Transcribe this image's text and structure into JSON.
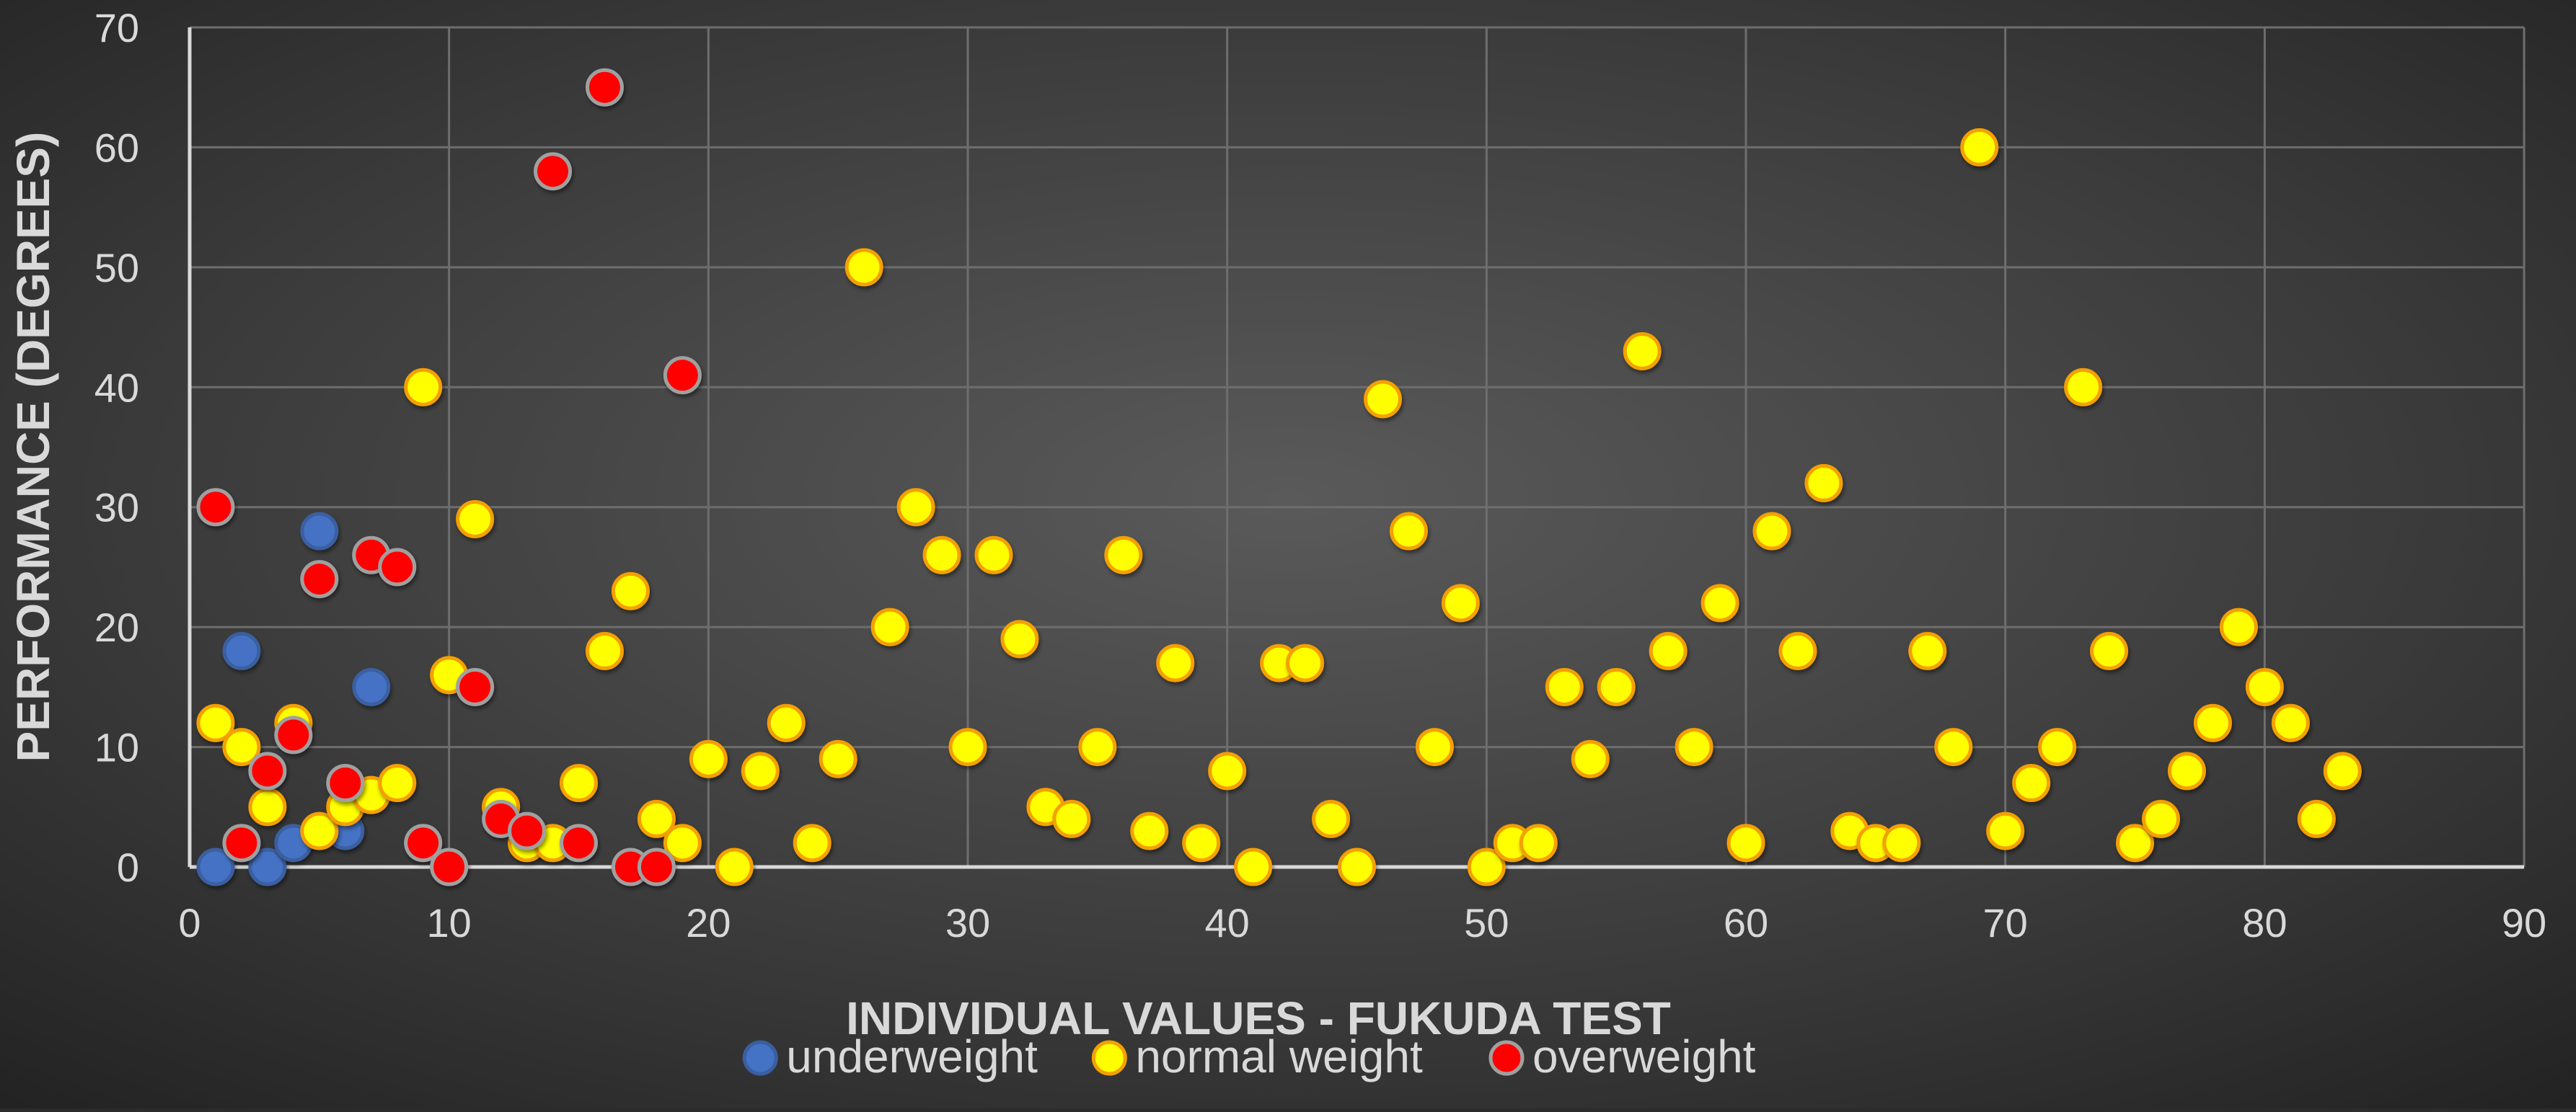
{
  "chart_data": {
    "type": "scatter",
    "title": "",
    "xlabel": "INDIVIDUAL VALUES - FUKUDA TEST",
    "ylabel": "PERFORMANCE (DEGREES)",
    "xlim": [
      0,
      90
    ],
    "ylim": [
      0,
      70
    ],
    "x_ticks": [
      0,
      10,
      20,
      30,
      40,
      50,
      60,
      70,
      80,
      90
    ],
    "y_ticks": [
      0,
      10,
      20,
      30,
      40,
      50,
      60,
      70
    ],
    "grid": true,
    "legend_position": "bottom",
    "series": [
      {
        "name": "underweight",
        "color": "#4472c4",
        "points": [
          {
            "x": 1,
            "y": 0
          },
          {
            "x": 2,
            "y": 18
          },
          {
            "x": 3,
            "y": 0
          },
          {
            "x": 4,
            "y": 2
          },
          {
            "x": 5,
            "y": 28
          },
          {
            "x": 6,
            "y": 3
          },
          {
            "x": 7,
            "y": 15
          }
        ]
      },
      {
        "name": "normal weight",
        "color": "#ffff00",
        "points": [
          {
            "x": 1,
            "y": 12
          },
          {
            "x": 2,
            "y": 10
          },
          {
            "x": 3,
            "y": 5
          },
          {
            "x": 4,
            "y": 12
          },
          {
            "x": 5,
            "y": 3
          },
          {
            "x": 6,
            "y": 5
          },
          {
            "x": 7,
            "y": 6
          },
          {
            "x": 8,
            "y": 7
          },
          {
            "x": 9,
            "y": 40
          },
          {
            "x": 10,
            "y": 16
          },
          {
            "x": 11,
            "y": 29
          },
          {
            "x": 12,
            "y": 5
          },
          {
            "x": 13,
            "y": 2
          },
          {
            "x": 14,
            "y": 2
          },
          {
            "x": 15,
            "y": 7
          },
          {
            "x": 16,
            "y": 18
          },
          {
            "x": 17,
            "y": 23
          },
          {
            "x": 18,
            "y": 4
          },
          {
            "x": 19,
            "y": 2
          },
          {
            "x": 20,
            "y": 9
          },
          {
            "x": 21,
            "y": 0
          },
          {
            "x": 22,
            "y": 8
          },
          {
            "x": 23,
            "y": 12
          },
          {
            "x": 24,
            "y": 2
          },
          {
            "x": 25,
            "y": 9
          },
          {
            "x": 26,
            "y": 50
          },
          {
            "x": 27,
            "y": 20
          },
          {
            "x": 28,
            "y": 30
          },
          {
            "x": 29,
            "y": 26
          },
          {
            "x": 30,
            "y": 10
          },
          {
            "x": 31,
            "y": 26
          },
          {
            "x": 32,
            "y": 19
          },
          {
            "x": 33,
            "y": 5
          },
          {
            "x": 34,
            "y": 4
          },
          {
            "x": 35,
            "y": 10
          },
          {
            "x": 36,
            "y": 26
          },
          {
            "x": 37,
            "y": 3
          },
          {
            "x": 38,
            "y": 17
          },
          {
            "x": 39,
            "y": 2
          },
          {
            "x": 40,
            "y": 8
          },
          {
            "x": 41,
            "y": 0
          },
          {
            "x": 42,
            "y": 17
          },
          {
            "x": 43,
            "y": 17
          },
          {
            "x": 44,
            "y": 4
          },
          {
            "x": 45,
            "y": 0
          },
          {
            "x": 46,
            "y": 39
          },
          {
            "x": 47,
            "y": 28
          },
          {
            "x": 48,
            "y": 10
          },
          {
            "x": 49,
            "y": 22
          },
          {
            "x": 50,
            "y": 0
          },
          {
            "x": 51,
            "y": 2
          },
          {
            "x": 52,
            "y": 2
          },
          {
            "x": 53,
            "y": 15
          },
          {
            "x": 54,
            "y": 9
          },
          {
            "x": 55,
            "y": 15
          },
          {
            "x": 56,
            "y": 43
          },
          {
            "x": 57,
            "y": 18
          },
          {
            "x": 58,
            "y": 10
          },
          {
            "x": 59,
            "y": 22
          },
          {
            "x": 60,
            "y": 2
          },
          {
            "x": 61,
            "y": 28
          },
          {
            "x": 62,
            "y": 18
          },
          {
            "x": 63,
            "y": 32
          },
          {
            "x": 64,
            "y": 3
          },
          {
            "x": 65,
            "y": 2
          },
          {
            "x": 66,
            "y": 2
          },
          {
            "x": 67,
            "y": 18
          },
          {
            "x": 68,
            "y": 10
          },
          {
            "x": 69,
            "y": 60
          },
          {
            "x": 70,
            "y": 3
          },
          {
            "x": 71,
            "y": 7
          },
          {
            "x": 72,
            "y": 10
          },
          {
            "x": 73,
            "y": 40
          },
          {
            "x": 74,
            "y": 18
          },
          {
            "x": 75,
            "y": 2
          },
          {
            "x": 76,
            "y": 4
          },
          {
            "x": 77,
            "y": 8
          },
          {
            "x": 78,
            "y": 12
          },
          {
            "x": 79,
            "y": 20
          },
          {
            "x": 80,
            "y": 15
          },
          {
            "x": 81,
            "y": 12
          },
          {
            "x": 82,
            "y": 4
          },
          {
            "x": 83,
            "y": 8
          }
        ]
      },
      {
        "name": "overweight",
        "color": "#ff0000",
        "points": [
          {
            "x": 1,
            "y": 30
          },
          {
            "x": 2,
            "y": 2
          },
          {
            "x": 3,
            "y": 8
          },
          {
            "x": 4,
            "y": 11
          },
          {
            "x": 5,
            "y": 24
          },
          {
            "x": 6,
            "y": 7
          },
          {
            "x": 7,
            "y": 26
          },
          {
            "x": 8,
            "y": 25
          },
          {
            "x": 9,
            "y": 2
          },
          {
            "x": 10,
            "y": 0
          },
          {
            "x": 11,
            "y": 15
          },
          {
            "x": 12,
            "y": 4
          },
          {
            "x": 13,
            "y": 3
          },
          {
            "x": 14,
            "y": 58
          },
          {
            "x": 15,
            "y": 2
          },
          {
            "x": 16,
            "y": 65
          },
          {
            "x": 17,
            "y": 0
          },
          {
            "x": 18,
            "y": 0
          },
          {
            "x": 19,
            "y": 41
          }
        ]
      }
    ]
  }
}
